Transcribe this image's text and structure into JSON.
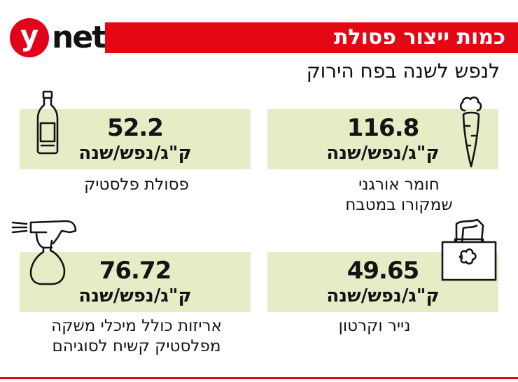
{
  "brand": {
    "circle_letter": "y",
    "wordmark": "net",
    "color": "#e2001a"
  },
  "header": {
    "title": "כמות ייצור פסולת",
    "subtitle": "לנפש לשנה בפח הירוק",
    "title_bg_color": "#e30613"
  },
  "card_bg_color": "#e6ecc6",
  "items": [
    {
      "value": "116.8",
      "unit": "ק\"ג/נפש/שנה",
      "label_lines": [
        "חומר אורגני",
        "שמקורו במטבח"
      ],
      "icon": "carrot-icon"
    },
    {
      "value": "52.2",
      "unit": "ק\"ג/נפש/שנה",
      "label_lines": [
        "פסולת פלסטיק"
      ],
      "icon": "plastic-bottle-icon"
    },
    {
      "value": "49.65",
      "unit": "ק\"ג/נפש/שנה",
      "label_lines": [
        "נייר וקרטון"
      ],
      "icon": "tissue-box-icon"
    },
    {
      "value": "76.72",
      "unit": "ק\"ג/נפש/שנה",
      "label_lines": [
        "אריזות כולל מיכלי משקה",
        "מפלסטיק קשיח לסוגיהם"
      ],
      "icon": "spray-bottle-icon"
    }
  ]
}
